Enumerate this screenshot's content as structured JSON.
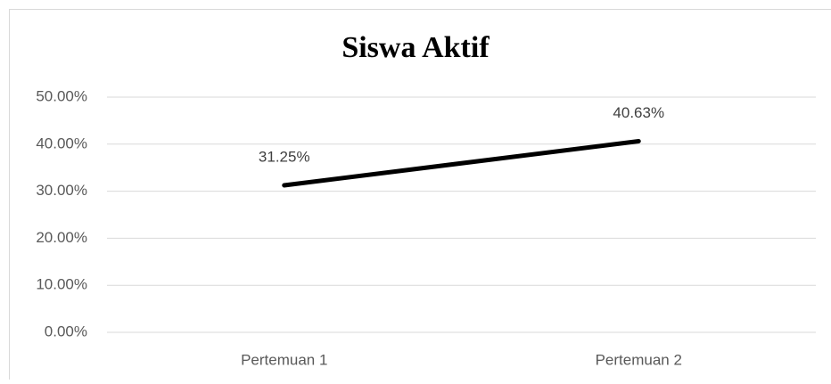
{
  "chart_data": {
    "type": "line",
    "title": "Siswa Aktif",
    "categories": [
      "Pertemuan 1",
      "Pertemuan 2"
    ],
    "series": [
      {
        "name": "Siswa Aktif",
        "color": "#000000",
        "values": [
          31.25,
          40.63
        ],
        "value_labels": [
          "31.25%",
          "40.63%"
        ]
      }
    ],
    "ylim": [
      0,
      50
    ],
    "yticks": [
      {
        "value": 0,
        "label": "0.00%"
      },
      {
        "value": 10,
        "label": "10.00%"
      },
      {
        "value": 20,
        "label": "20.00%"
      },
      {
        "value": 30,
        "label": "30.00%"
      },
      {
        "value": 40,
        "label": "40.00%"
      },
      {
        "value": 50,
        "label": "50.00%"
      }
    ],
    "grid": true
  }
}
